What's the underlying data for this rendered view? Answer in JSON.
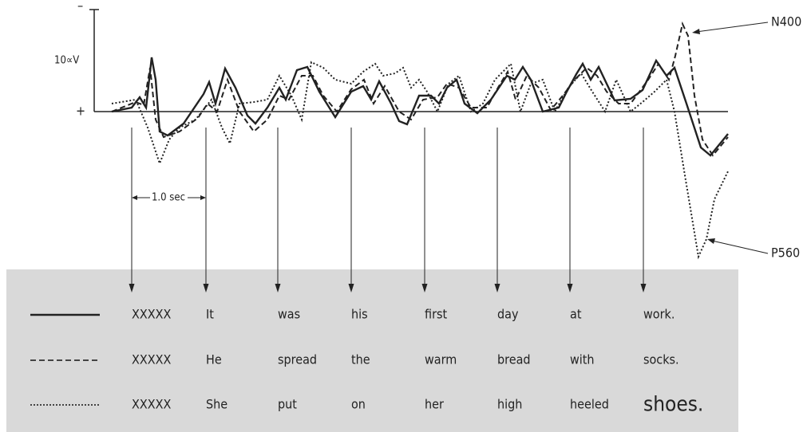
{
  "axis": {
    "top_label": "–",
    "scale_label": "10∝V",
    "bottom_label": "+"
  },
  "time_label": "1.0 sec",
  "annotations": [
    "N400",
    "P560"
  ],
  "sentences": [
    {
      "words": [
        "XXXXX",
        "It",
        "was",
        "his",
        "first",
        "day",
        "at",
        "work."
      ]
    },
    {
      "words": [
        "XXXXX",
        "He",
        "spread",
        "the",
        "warm",
        "bread",
        "with",
        "socks."
      ]
    },
    {
      "words": [
        "XXXXX",
        "She",
        "put",
        "on",
        "her",
        "high",
        "heeled",
        "shoes."
      ]
    }
  ]
}
